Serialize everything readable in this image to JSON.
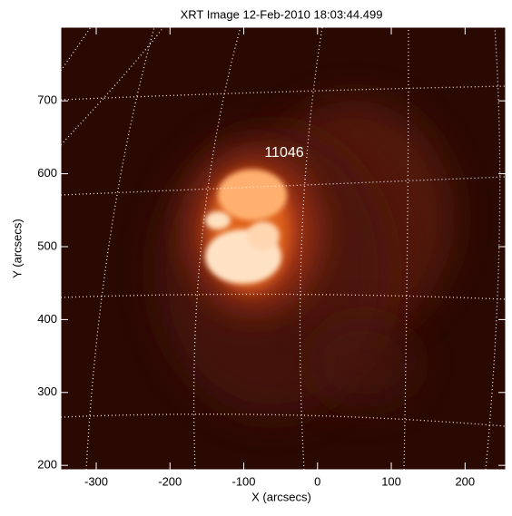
{
  "chart_data": {
    "type": "image",
    "title": "XRT Image 12-Feb-2010 18:03:44.499",
    "xlabel": "X (arcsecs)",
    "ylabel": "Y (arcsecs)",
    "annotation": "11046",
    "xlim": [
      -348,
      255
    ],
    "ylim": [
      194,
      801
    ],
    "xticks": [
      -300,
      -200,
      -100,
      0,
      100,
      200
    ],
    "yticks": [
      200,
      300,
      400,
      500,
      600,
      700
    ]
  }
}
